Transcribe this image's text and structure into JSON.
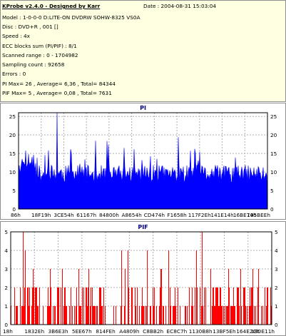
{
  "info": {
    "app_title": "KProbe v2.4.0 - Designed by Karr",
    "date_label": "Date : 2004-08-31 15:03:04",
    "lines": [
      "Model : 1-0-0-0 D:LITE-ON DVDRW SOHW-8325  VS0A",
      "Disc : DVD+R , 001 []",
      "Speed : 4x",
      "ECC blocks sum (PI/PIF) : 8/1",
      "Scanned range : 0 - 1704982",
      "Sampling count : 92658",
      "Errors : 0",
      "PI Max= 26 ,  Average= 6,36 ,  Total= 84344",
      "PIF Max= 5 ,  Average= 0,08 ,  Total= 7631"
    ]
  },
  "chart_data": [
    {
      "type": "area",
      "title": "PI",
      "color": "#0000ff",
      "ylim": [
        0,
        26
      ],
      "yticks": [
        0,
        5,
        10,
        15,
        20,
        25
      ],
      "xtick_labels": [
        "86h",
        "18F19h",
        "3CE54h",
        "61167h",
        "84800h",
        "A8654h",
        "CD474h",
        "F1658h",
        "117F2Eh",
        "141E14h",
        "16BE74h",
        "195BEEh"
      ],
      "max": 26,
      "average": 6.36,
      "grid": true
    },
    {
      "type": "bar",
      "title": "PIF",
      "color": "#ff0000",
      "ylim": [
        0,
        5
      ],
      "yticks": [
        0,
        1,
        2,
        3,
        4,
        5
      ],
      "xtick_labels": [
        "18h",
        "1832Eh",
        "3B6E3h",
        "5EE67h",
        "814FEh",
        "A4809h",
        "C8BB2h",
        "EC8C7h",
        "1130B8h",
        "13BF5Eh",
        "164E2Ch",
        "18DE11h"
      ],
      "max": 5,
      "average": 0.08,
      "grid": true
    }
  ]
}
